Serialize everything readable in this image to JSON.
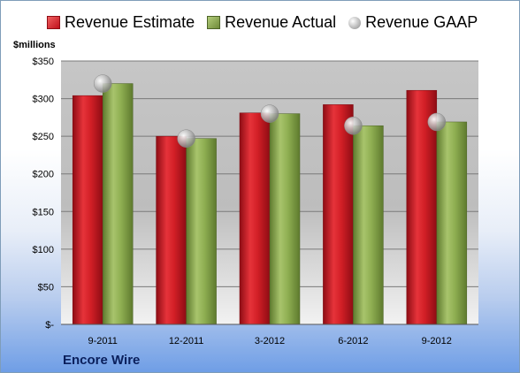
{
  "legend": {
    "estimate": "Revenue Estimate",
    "actual": "Revenue Actual",
    "gaap": "Revenue GAAP"
  },
  "units_label": "$millions",
  "company": "Encore Wire",
  "colors": {
    "estimate": "#d21f26",
    "actual": "#8faf52",
    "gaap": "#b8b8b8"
  },
  "chart_data": {
    "type": "bar",
    "categories": [
      "9-2011",
      "12-2011",
      "3-2012",
      "6-2012",
      "9-2012"
    ],
    "series": [
      {
        "name": "Revenue Estimate",
        "values": [
          304,
          250,
          281,
          292,
          311
        ]
      },
      {
        "name": "Revenue Actual",
        "values": [
          320,
          247,
          280,
          264,
          269
        ]
      },
      {
        "name": "Revenue GAAP",
        "values": [
          320,
          247,
          280,
          264,
          269
        ],
        "marker": "circle"
      }
    ],
    "ylabel": "$millions",
    "ylim": [
      0,
      350
    ],
    "yticks": [
      0,
      50,
      100,
      150,
      200,
      250,
      300,
      350
    ],
    "ytick_labels": [
      "$-",
      "$50",
      "$100",
      "$150",
      "$200",
      "$250",
      "$300",
      "$350"
    ],
    "grid": true,
    "legend_position": "top"
  }
}
